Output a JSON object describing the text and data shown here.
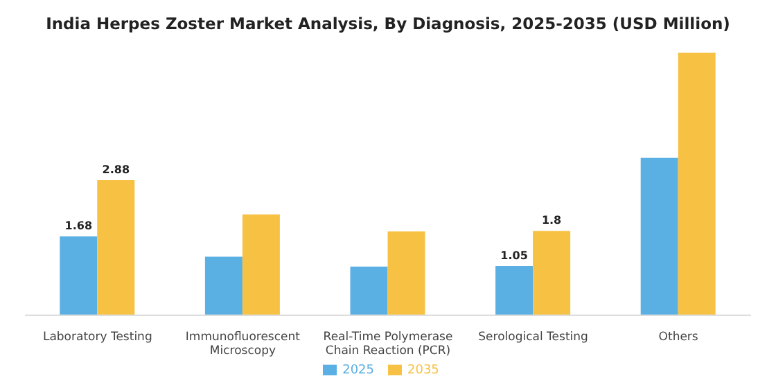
{
  "chart_data": {
    "type": "bar",
    "title": "India Herpes Zoster Market Analysis, By Diagnosis, 2025-2035 (USD Million)",
    "categories": [
      "Laboratory Testing",
      "Immunofluorescent Microscopy",
      "Real-Time Polymerase Chain Reaction (PCR)",
      "Serological Testing",
      "Others"
    ],
    "series": [
      {
        "name": "2025",
        "color": "#5aafe3",
        "values": [
          1.68,
          1.25,
          1.04,
          1.05,
          3.36
        ],
        "value_labels": [
          "1.68",
          null,
          null,
          "1.05",
          null
        ]
      },
      {
        "name": "2035",
        "color": "#f7c244",
        "values": [
          2.88,
          2.15,
          1.79,
          1.8,
          5.6
        ],
        "value_labels": [
          "2.88",
          null,
          null,
          "1.8",
          null
        ]
      }
    ],
    "legend": "bottom"
  }
}
